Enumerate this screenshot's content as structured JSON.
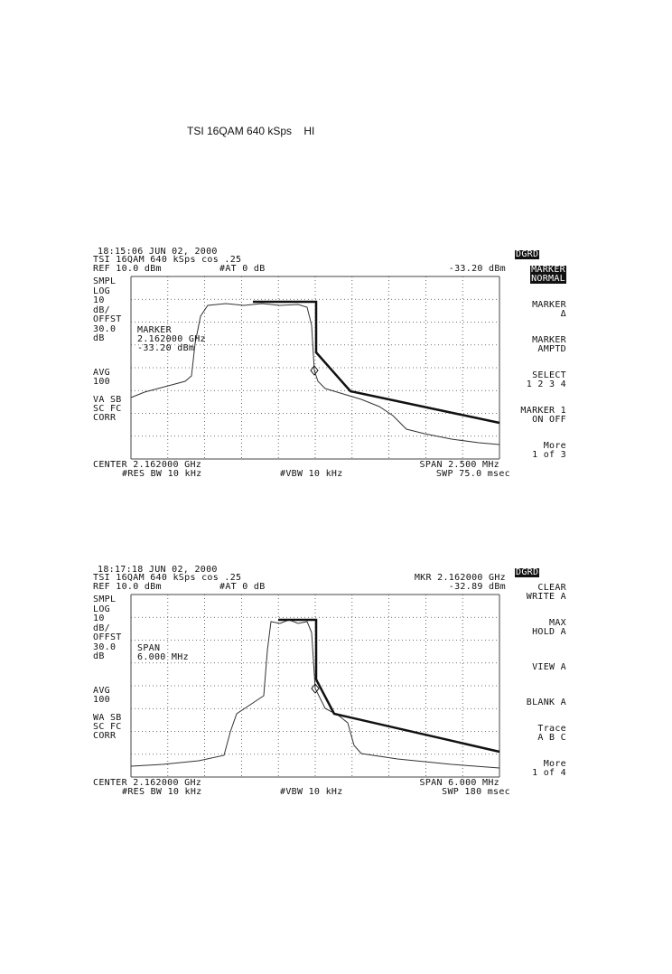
{
  "header": {
    "title": "TSI 16QAM 640 kSps    HI"
  },
  "screens": [
    {
      "timestamp": "18:15:06 JUN 02, 2000",
      "title_line": "TSI 16QAM 640 kSps cos .25",
      "ref": "REF 10.0 dBm",
      "atten": "#AT 0 dB",
      "top_right": [
        "-33.20 dBm"
      ],
      "left_labels": [
        "SMPL",
        "LOG",
        "10",
        "dB/",
        "OFFST",
        "30.0",
        "dB"
      ],
      "left_labels_2": [
        "AVG",
        "100"
      ],
      "left_labels_3": [
        "VA SB",
        "SC FC",
        "CORR"
      ],
      "annotation": [
        "MARKER",
        "2.162000 GHz",
        "-33.20 dBm"
      ],
      "center": "CENTER 2.162000 GHz",
      "span": "SPAN 2.500 MHz",
      "rbw": "#RES BW 10 kHz",
      "vbw": "#VBW 10 kHz",
      "swp": "SWP 75.0 msec",
      "badge": "DGRD",
      "softkeys": [
        [
          "MARKER",
          "NORMAL"
        ],
        [
          "MARKER",
          "Δ"
        ],
        [
          "MARKER",
          "AMPTD"
        ],
        [
          "SELECT",
          "1 2 3 4"
        ],
        [
          "MARKER 1",
          "ON OFF"
        ],
        [
          "More",
          "1 of 3"
        ]
      ]
    },
    {
      "timestamp": "18:17:18 JUN 02, 2000",
      "title_line": "TSI 16QAM 640 kSps cos .25",
      "ref": "REF 10.0 dBm",
      "atten": "#AT 0 dB",
      "top_right": [
        "MKR 2.162000 GHz",
        "-32.89 dBm"
      ],
      "left_labels": [
        "SMPL",
        "LOG",
        "10",
        "dB/",
        "OFFST",
        "30.0",
        "dB"
      ],
      "left_labels_2": [
        "AVG",
        "100"
      ],
      "left_labels_3": [
        "WA SB",
        "SC FC",
        "CORR"
      ],
      "annotation": [
        "SPAN",
        "6.000 MHz"
      ],
      "center": "CENTER 2.162000 GHz",
      "span": "SPAN 6.000 MHz",
      "rbw": "#RES BW 10 kHz",
      "vbw": "#VBW 10 kHz",
      "swp": "SWP 180 msec",
      "badge": "DGRD",
      "softkeys": [
        [
          "CLEAR",
          "WRITE A"
        ],
        [
          "MAX",
          "HOLD A"
        ],
        [
          "VIEW A"
        ],
        [
          "BLANK A"
        ],
        [
          "Trace",
          "A B C"
        ],
        [
          "More",
          "1 of 4"
        ]
      ]
    }
  ]
}
